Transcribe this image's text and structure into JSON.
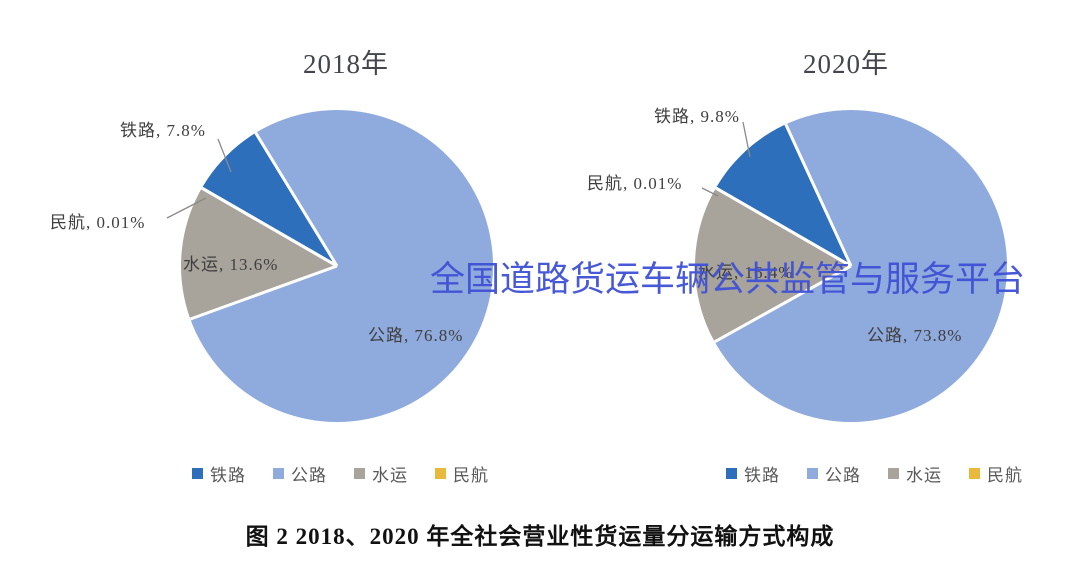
{
  "figure": {
    "caption": "图 2 2018、2020 年全社会营业性货运量分运输方式构成",
    "watermark": {
      "text": "全国道路货运车辆公共监管与服务平台",
      "color": "#3f51d6"
    }
  },
  "legend": {
    "items": [
      {
        "label": "铁路",
        "color": "#2e6fbc"
      },
      {
        "label": "公路",
        "color": "#8faadc"
      },
      {
        "label": "水运",
        "color": "#a8a39b"
      },
      {
        "label": "民航",
        "color": "#e8b93c"
      }
    ]
  },
  "chart_data": [
    {
      "type": "pie",
      "title": "2018年",
      "units": "%",
      "start_angle_deg": 300,
      "legend_position": "bottom",
      "slices": [
        {
          "name": "铁路",
          "value": 7.8,
          "label_text": "铁路, 7.8%",
          "color": "#2e6fbc"
        },
        {
          "name": "公路",
          "value": 76.8,
          "label_text": "公路, 76.8%",
          "color": "#8faadc"
        },
        {
          "name": "水运",
          "value": 13.6,
          "label_text": "水运, 13.6%",
          "color": "#a8a39b"
        },
        {
          "name": "民航",
          "value": 0.01,
          "label_text": "民航, 0.01%",
          "color": "#e8b93c"
        }
      ]
    },
    {
      "type": "pie",
      "title": "2020年",
      "units": "%",
      "start_angle_deg": 300,
      "legend_position": "bottom",
      "slices": [
        {
          "name": "铁路",
          "value": 9.8,
          "label_text": "铁路, 9.8%",
          "color": "#2e6fbc"
        },
        {
          "name": "公路",
          "value": 73.8,
          "label_text": "公路, 73.8%",
          "color": "#8faadc"
        },
        {
          "name": "水运",
          "value": 16.4,
          "label_text": "水运, 16.4%",
          "color": "#a8a39b"
        },
        {
          "name": "民航",
          "value": 0.01,
          "label_text": "民航, 0.01%",
          "color": "#e8b93c"
        }
      ]
    }
  ]
}
